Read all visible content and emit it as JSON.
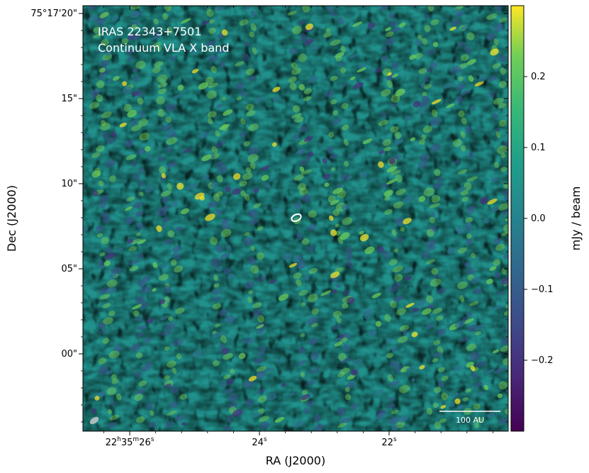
{
  "chart_data": {
    "type": "heatmap",
    "title_lines": [
      "IRAS 22343+7501",
      "Continuum VLA X band"
    ],
    "xlabel": "RA (J2000)",
    "ylabel": "Dec (J2000)",
    "x_ticks": [
      {
        "label_main": "22",
        "h": "h",
        "mid": "35",
        "m": "m",
        "sec": "26",
        "s": "s"
      },
      {
        "label_main": "24",
        "s": "s"
      },
      {
        "label_main": "22",
        "s": "s"
      }
    ],
    "y_ticks": [
      "75°17'20\"",
      "15\"",
      "10\"",
      "05\"",
      "00\""
    ],
    "y_tick_values_arcsec": [
      20,
      15,
      10,
      5,
      0
    ],
    "colorbar": {
      "label": "mJy / beam",
      "ticks": [
        "0.2",
        "0.1",
        "0.0",
        "−0.1",
        "−0.2"
      ],
      "tick_values": [
        0.2,
        0.1,
        0.0,
        -0.1,
        -0.2
      ],
      "range": [
        -0.3,
        0.3
      ],
      "colormap": "viridis"
    },
    "scale_bar_label": "100 AU",
    "contour_color": "#ffffff",
    "source_marker": {
      "type": "contour-ellipse",
      "ra_label": "near 23.5s",
      "dec_offset_arcsec": 8
    }
  }
}
